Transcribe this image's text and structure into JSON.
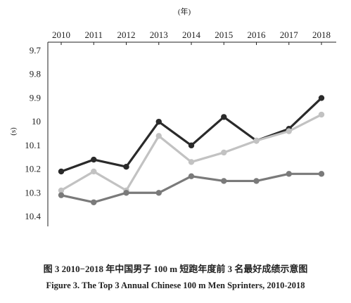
{
  "chart_data": {
    "type": "line",
    "x_unit_label": "(年)",
    "y_unit_label": "(s)",
    "x": [
      "2010",
      "2011",
      "2012",
      "2013",
      "2014",
      "2015",
      "2016",
      "2017",
      "2018"
    ],
    "y_ticks": [
      "9.7",
      "9.8",
      "9.9",
      "10",
      "10.1",
      "10.2",
      "10.3",
      "10.4"
    ],
    "ylim": [
      9.7,
      10.4
    ],
    "y_inverted": true,
    "x_axis_position": "top",
    "grid": false,
    "series": [
      {
        "color": "#2a2a2a",
        "values": [
          10.21,
          10.16,
          10.19,
          10.0,
          10.1,
          9.98,
          10.08,
          10.03,
          9.9
        ]
      },
      {
        "color": "#c2c2c2",
        "values": [
          10.29,
          10.21,
          10.29,
          10.06,
          10.17,
          10.13,
          10.08,
          10.04,
          9.97
        ]
      },
      {
        "color": "#7a7a7a",
        "values": [
          10.31,
          10.34,
          10.3,
          10.3,
          10.23,
          10.25,
          10.25,
          10.22,
          10.22
        ]
      }
    ]
  },
  "captions": {
    "chinese": "图 3   2010−2018 年中国男子 100  m 短跑年度前 3 名最好成绩示意图",
    "english": "Figure 3.  The Top 3 Annual Chinese 100 m Men Sprinters, 2010-2018"
  }
}
